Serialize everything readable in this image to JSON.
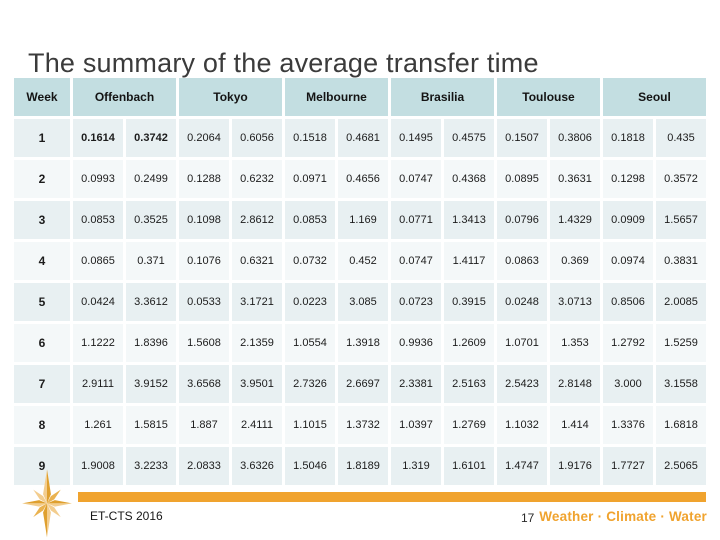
{
  "slide": {
    "title": "The summary of the average transfer time",
    "footer": {
      "left_text": "ET-CTS 2016",
      "page_number": "17",
      "brand_text": "Weather · Climate · Water"
    },
    "icons": {
      "logo": "compass-star-icon"
    },
    "colors": {
      "header_bg": "#c3dee1",
      "row_odd_bg": "#e8f0f2",
      "row_even_bg": "#f4f8f9",
      "accent_orange": "#f0a32e",
      "title_color": "#3b3b3b",
      "compass_gold_light": "#f3cd8e",
      "compass_gold_dark": "#dfa02f"
    }
  },
  "table": {
    "week_header": "Week",
    "city_headers": [
      "Offenbach",
      "Tokyo",
      "Melbourne",
      "Brasilia",
      "Toulouse",
      "Seoul"
    ],
    "bold_cells": [
      [
        0,
        0
      ],
      [
        0,
        1
      ]
    ],
    "rows": [
      {
        "week": "1",
        "values": [
          "0.1614",
          "0.3742",
          "0.2064",
          "0.6056",
          "0.1518",
          "0.4681",
          "0.1495",
          "0.4575",
          "0.1507",
          "0.3806",
          "0.1818",
          "0.435"
        ]
      },
      {
        "week": "2",
        "values": [
          "0.0993",
          "0.2499",
          "0.1288",
          "0.6232",
          "0.0971",
          "0.4656",
          "0.0747",
          "0.4368",
          "0.0895",
          "0.3631",
          "0.1298",
          "0.3572"
        ]
      },
      {
        "week": "3",
        "values": [
          "0.0853",
          "0.3525",
          "0.1098",
          "2.8612",
          "0.0853",
          "1.169",
          "0.0771",
          "1.3413",
          "0.0796",
          "1.4329",
          "0.0909",
          "1.5657"
        ]
      },
      {
        "week": "4",
        "values": [
          "0.0865",
          "0.371",
          "0.1076",
          "0.6321",
          "0.0732",
          "0.452",
          "0.0747",
          "1.4117",
          "0.0863",
          "0.369",
          "0.0974",
          "0.3831"
        ]
      },
      {
        "week": "5",
        "values": [
          "0.0424",
          "3.3612",
          "0.0533",
          "3.1721",
          "0.0223",
          "3.085",
          "0.0723",
          "0.3915",
          "0.0248",
          "3.0713",
          "0.8506",
          "2.0085"
        ]
      },
      {
        "week": "6",
        "values": [
          "1.1222",
          "1.8396",
          "1.5608",
          "2.1359",
          "1.0554",
          "1.3918",
          "0.9936",
          "1.2609",
          "1.0701",
          "1.353",
          "1.2792",
          "1.5259"
        ]
      },
      {
        "week": "7",
        "values": [
          "2.9111",
          "3.9152",
          "3.6568",
          "3.9501",
          "2.7326",
          "2.6697",
          "2.3381",
          "2.5163",
          "2.5423",
          "2.8148",
          "3.000",
          "3.1558"
        ]
      },
      {
        "week": "8",
        "values": [
          "1.261",
          "1.5815",
          "1.887",
          "2.4111",
          "1.1015",
          "1.3732",
          "1.0397",
          "1.2769",
          "1.1032",
          "1.414",
          "1.3376",
          "1.6818"
        ]
      },
      {
        "week": "9",
        "values": [
          "1.9008",
          "3.2233",
          "2.0833",
          "3.6326",
          "1.5046",
          "1.8189",
          "1.319",
          "1.6101",
          "1.4747",
          "1.9176",
          "1.7727",
          "2.5065"
        ]
      }
    ]
  }
}
